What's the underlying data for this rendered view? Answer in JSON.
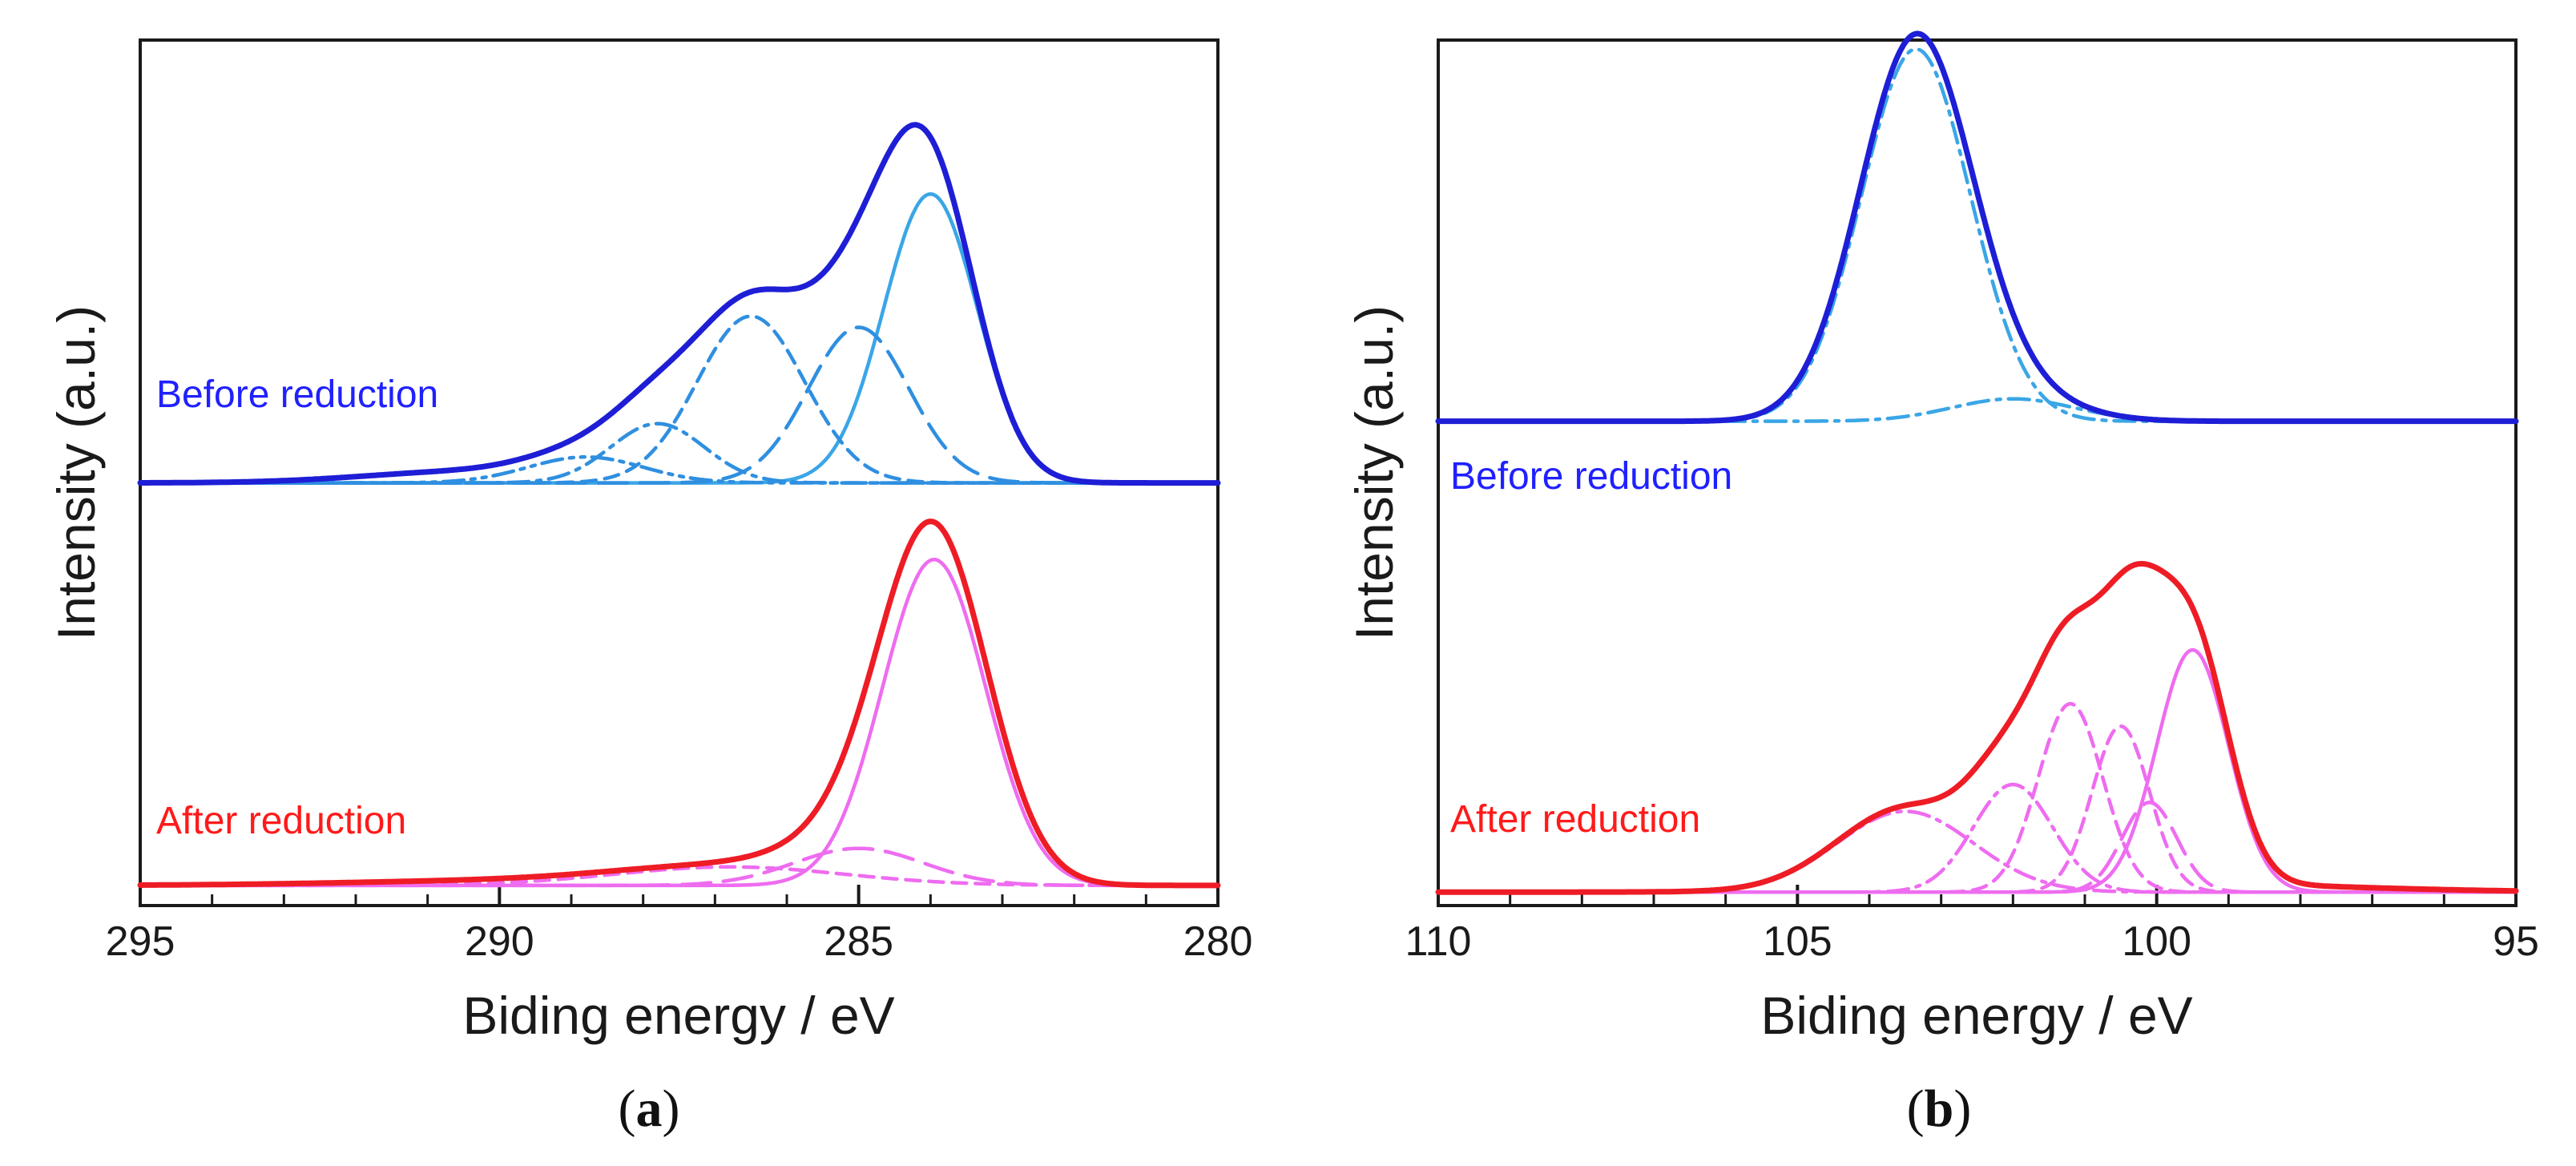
{
  "chart_data": [
    {
      "type": "line",
      "panel": "a",
      "panel_label": "a",
      "xlabel": "Biding energy / eV",
      "ylabel": "Intensity (a.u.)",
      "xlim": [
        295,
        280
      ],
      "x_reversed": true,
      "xticks": [
        "295",
        "290",
        "285",
        "280"
      ],
      "xtick_values": [
        295,
        290,
        285,
        280
      ],
      "minor_tick_step": 1,
      "traces": [
        {
          "name": "Before reduction",
          "label": "Before reduction",
          "label_color": "#2020ff",
          "color": "#1e1ed6",
          "role": "envelope",
          "baseline": 1.0,
          "scale": 0.92,
          "components": [
            {
              "center": 284.0,
              "amp": 0.78,
              "sigma": 0.65
            },
            {
              "center": 285.0,
              "amp": 0.42,
              "sigma": 0.7
            },
            {
              "center": 286.5,
              "amp": 0.45,
              "sigma": 0.75
            },
            {
              "center": 287.8,
              "amp": 0.16,
              "sigma": 0.65
            },
            {
              "center": 288.8,
              "amp": 0.07,
              "sigma": 0.8
            },
            {
              "center": 290.5,
              "amp": 0.03,
              "sigma": 1.4
            }
          ]
        },
        {
          "name": "C-C component",
          "color": "#3aa6e6",
          "dash": "solid",
          "baseline": 1.0,
          "scale": 0.92,
          "components": [
            {
              "center": 284.0,
              "amp": 0.78,
              "sigma": 0.65
            }
          ]
        },
        {
          "name": "Long-dash component",
          "color": "#2f8fe0",
          "dash": "longdash",
          "baseline": 1.0,
          "scale": 0.92,
          "components": [
            {
              "center": 285.0,
              "amp": 0.42,
              "sigma": 0.7
            }
          ]
        },
        {
          "name": "Short-dash component",
          "color": "#2f8fe0",
          "dash": "shortdash",
          "baseline": 1.0,
          "scale": 0.92,
          "components": [
            {
              "center": 286.5,
              "amp": 0.45,
              "sigma": 0.75
            }
          ]
        },
        {
          "name": "Dash-dot component",
          "color": "#2f8fe0",
          "dash": "dashdot",
          "baseline": 1.0,
          "scale": 0.92,
          "components": [
            {
              "center": 287.8,
              "amp": 0.16,
              "sigma": 0.65
            }
          ]
        },
        {
          "name": "Dash-dot-dot component",
          "color": "#2f8fe0",
          "dash": "dashdotdot",
          "baseline": 1.0,
          "scale": 0.92,
          "components": [
            {
              "center": 288.8,
              "amp": 0.07,
              "sigma": 0.8
            }
          ]
        },
        {
          "name": "After reduction",
          "label": "After reduction",
          "label_color": "#ff1a1a",
          "color": "#ee1c25",
          "role": "envelope",
          "baseline": 0.0,
          "scale": 0.92,
          "components": [
            {
              "center": 283.95,
              "amp": 0.92,
              "sigma": 0.75
            },
            {
              "center": 285.0,
              "amp": 0.1,
              "sigma": 0.9
            },
            {
              "center": 286.8,
              "amp": 0.05,
              "sigma": 1.6
            },
            {
              "center": 290.0,
              "amp": 0.012,
              "sigma": 2.2
            }
          ]
        },
        {
          "name": "After main component",
          "color": "#ee6cf0",
          "dash": "solid",
          "baseline": 0.0,
          "scale": 0.92,
          "components": [
            {
              "center": 283.95,
              "amp": 0.88,
              "sigma": 0.72
            }
          ]
        },
        {
          "name": "After long-dash component",
          "color": "#ee6cf0",
          "dash": "longdash",
          "baseline": 0.0,
          "scale": 0.92,
          "components": [
            {
              "center": 285.0,
              "amp": 0.1,
              "sigma": 0.9
            }
          ]
        },
        {
          "name": "After short-dash component",
          "color": "#ee6cf0",
          "dash": "shortdash",
          "baseline": 0.0,
          "scale": 0.92,
          "components": [
            {
              "center": 286.8,
              "amp": 0.05,
              "sigma": 1.6
            }
          ]
        }
      ],
      "ylim": [
        -0.05,
        2.1
      ]
    },
    {
      "type": "line",
      "panel": "b",
      "panel_label": "b",
      "xlabel": "Biding energy / eV",
      "ylabel": "Intensity (a.u.)",
      "xlim": [
        110,
        95
      ],
      "x_reversed": true,
      "xticks": [
        "110",
        "105",
        "100",
        "95"
      ],
      "xtick_values": [
        110,
        105,
        100,
        95
      ],
      "minor_tick_step": 1,
      "traces": [
        {
          "name": "Before reduction",
          "label": "Before reduction",
          "label_color": "#2020ff",
          "color": "#1e1ed6",
          "role": "envelope",
          "baseline": 1.05,
          "scale": 1.0,
          "components": [
            {
              "center": 103.35,
              "amp": 0.85,
              "sigma": 0.78
            },
            {
              "center": 102.0,
              "amp": 0.05,
              "sigma": 0.85
            }
          ]
        },
        {
          "name": "Before main component",
          "color": "#3aa6e6",
          "dash": "dashdot",
          "baseline": 1.05,
          "scale": 1.0,
          "components": [
            {
              "center": 103.35,
              "amp": 0.83,
              "sigma": 0.76
            }
          ]
        },
        {
          "name": "Before minor component",
          "color": "#3aa6e6",
          "dash": "dashdot",
          "baseline": 1.05,
          "scale": 1.0,
          "components": [
            {
              "center": 102.0,
              "amp": 0.05,
              "sigma": 0.85
            }
          ]
        },
        {
          "name": "After reduction",
          "label": "After reduction",
          "label_color": "#ff1a1a",
          "color": "#ee1c25",
          "role": "envelope",
          "baseline": 0.0,
          "scale": 1.0,
          "components": [
            {
              "center": 99.5,
              "amp": 0.54,
              "sigma": 0.5
            },
            {
              "center": 100.1,
              "amp": 0.2,
              "sigma": 0.38
            },
            {
              "center": 100.5,
              "amp": 0.37,
              "sigma": 0.4
            },
            {
              "center": 101.2,
              "amp": 0.42,
              "sigma": 0.45
            },
            {
              "center": 102.0,
              "amp": 0.24,
              "sigma": 0.55
            },
            {
              "center": 103.5,
              "amp": 0.18,
              "sigma": 0.95
            },
            {
              "center": 100.0,
              "amp": 0.02,
              "sigma": 2.5
            }
          ]
        },
        {
          "name": "After solid component",
          "color": "#ee6cf0",
          "dash": "solid",
          "baseline": 0.0,
          "scale": 1.0,
          "components": [
            {
              "center": 99.5,
              "amp": 0.54,
              "sigma": 0.5
            }
          ]
        },
        {
          "name": "After long-dash component",
          "color": "#ee6cf0",
          "dash": "longdash",
          "baseline": 0.0,
          "scale": 1.0,
          "components": [
            {
              "center": 100.1,
              "amp": 0.2,
              "sigma": 0.38
            }
          ]
        },
        {
          "name": "After short-dash component 1",
          "color": "#ee6cf0",
          "dash": "shortdash",
          "baseline": 0.0,
          "scale": 1.0,
          "components": [
            {
              "center": 100.5,
              "amp": 0.37,
              "sigma": 0.4
            }
          ]
        },
        {
          "name": "After short-dash component 2",
          "color": "#ee6cf0",
          "dash": "shortdash",
          "baseline": 0.0,
          "scale": 1.0,
          "components": [
            {
              "center": 101.2,
              "amp": 0.42,
              "sigma": 0.45
            }
          ]
        },
        {
          "name": "After dash-dot component 1",
          "color": "#ee6cf0",
          "dash": "dashdot",
          "baseline": 0.0,
          "scale": 1.0,
          "components": [
            {
              "center": 102.0,
              "amp": 0.24,
              "sigma": 0.55
            }
          ]
        },
        {
          "name": "After dash-dot component 2",
          "color": "#ee6cf0",
          "dash": "dashdot",
          "baseline": 0.0,
          "scale": 1.0,
          "components": [
            {
              "center": 103.5,
              "amp": 0.18,
              "sigma": 0.95
            }
          ]
        }
      ],
      "ylim": [
        -0.03,
        1.9
      ]
    }
  ]
}
